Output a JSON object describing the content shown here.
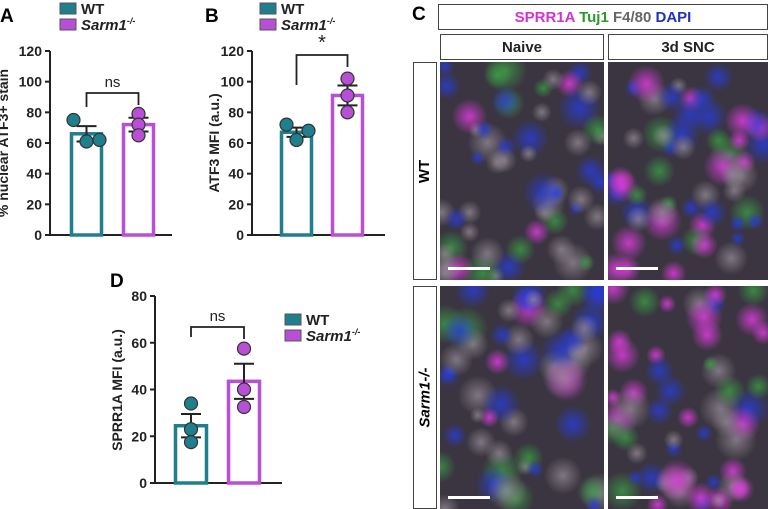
{
  "colors": {
    "wt": "#1f7f8c",
    "sarm1": "#b84fd6",
    "dapi": "#2030c0",
    "tuj1": "#2a9a2a",
    "f480": "#666666",
    "sprr1a": "#d433d4"
  },
  "chart_data": [
    {
      "panel": "A",
      "type": "bar",
      "categories": [
        "WT",
        "Sarm1-/-"
      ],
      "ylabel": "% nuclear ATF3+ stain",
      "ylim": [
        0,
        120
      ],
      "yticks": [
        0,
        20,
        40,
        60,
        80,
        100,
        120
      ],
      "series": [
        {
          "name": "WT",
          "mean": 66,
          "sem": 5,
          "points": [
            61,
            75,
            62
          ]
        },
        {
          "name": "Sarm1-/-",
          "mean": 72,
          "sem": 4.5,
          "points": [
            79,
            72,
            65
          ]
        }
      ],
      "significance": "ns",
      "legend": [
        "WT",
        "Sarm1-/-"
      ],
      "legend_position": "top"
    },
    {
      "panel": "B",
      "type": "bar",
      "categories": [
        "WT",
        "Sarm1-/-"
      ],
      "ylabel": "ATF3 MFI (a.u.)",
      "ylim": [
        0,
        120
      ],
      "yticks": [
        0,
        20,
        40,
        60,
        80,
        100,
        120
      ],
      "series": [
        {
          "name": "WT",
          "mean": 67,
          "sem": 3,
          "points": [
            72,
            62,
            68
          ]
        },
        {
          "name": "Sarm1-/-",
          "mean": 91,
          "sem": 6.5,
          "points": [
            102,
            91,
            80
          ]
        }
      ],
      "significance": "*",
      "legend": [
        "WT",
        "Sarm1-/-"
      ],
      "legend_position": "top"
    },
    {
      "panel": "D",
      "type": "bar",
      "categories": [
        "WT",
        "Sarm1-/-"
      ],
      "ylabel": "SPRR1A MFI (a.u.)",
      "ylim": [
        0,
        80
      ],
      "yticks": [
        0,
        20,
        40,
        60,
        80
      ],
      "series": [
        {
          "name": "WT",
          "mean": 24.5,
          "sem": 5,
          "points": [
            34,
            23,
            17.5
          ]
        },
        {
          "name": "Sarm1-/-",
          "mean": 43.5,
          "sem": 7.5,
          "points": [
            57.5,
            40,
            32.5
          ]
        }
      ],
      "significance": "ns",
      "legend": [
        "WT",
        "Sarm1-/-"
      ],
      "legend_position": "right"
    }
  ],
  "panel_c": {
    "label": "C",
    "stain_header": [
      {
        "text": "SPRR1A",
        "color": "#d433d4"
      },
      {
        "text": " Tuj1",
        "color": "#2a9a2a"
      },
      {
        "text": " F4/80",
        "color": "#666666"
      },
      {
        "text": " DAPI",
        "color": "#2030c0"
      }
    ],
    "columns": [
      "Naive",
      "3d SNC"
    ],
    "rows": [
      "WT",
      "Sarm1-/-"
    ]
  }
}
